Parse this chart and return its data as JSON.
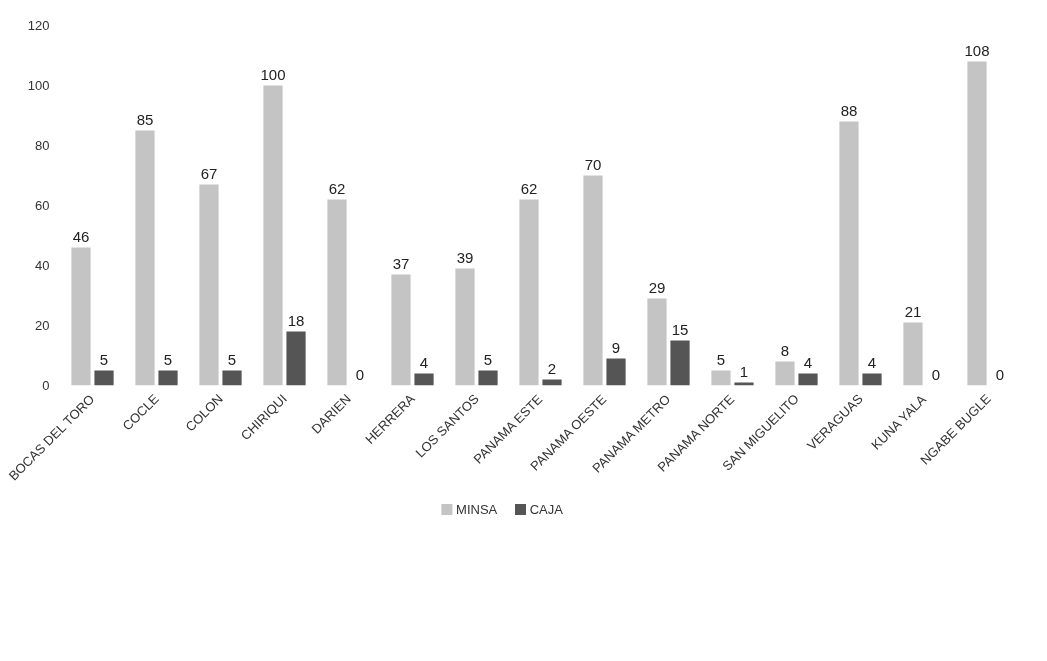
{
  "chart_data": {
    "type": "bar",
    "categories": [
      "BOCAS DEL TORO",
      "COCLE",
      "COLON",
      "CHIRIQUI",
      "DARIEN",
      "HERRERA",
      "LOS SANTOS",
      "PANAMA ESTE",
      "PANAMA OESTE",
      "PANAMA METRO",
      "PANAMA NORTE",
      "SAN MIGUELITO",
      "VERAGUAS",
      "KUNA YALA",
      "NGABE BUGLE"
    ],
    "series": [
      {
        "name": "MINSA",
        "color": "#c4c4c4",
        "values": [
          46,
          85,
          67,
          100,
          62,
          37,
          39,
          62,
          70,
          29,
          5,
          8,
          88,
          21,
          108
        ]
      },
      {
        "name": "CAJA",
        "color": "#555555",
        "values": [
          5,
          5,
          5,
          18,
          0,
          4,
          5,
          2,
          9,
          15,
          1,
          4,
          4,
          0,
          0
        ]
      }
    ],
    "ylim": [
      0,
      120
    ],
    "yticks": [
      0,
      20,
      40,
      60,
      80,
      100,
      120
    ],
    "grid": false,
    "legend": "bottom",
    "data_labels": true
  }
}
